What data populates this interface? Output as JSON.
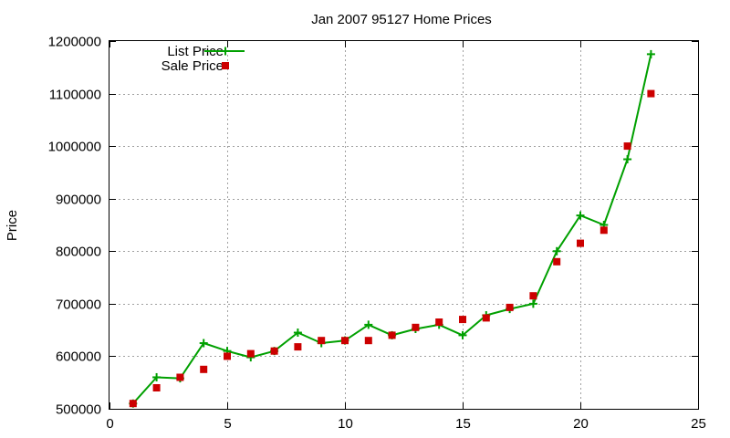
{
  "chart_data": {
    "type": "line",
    "title": "Jan 2007 95127 Home Prices",
    "xlabel": "",
    "ylabel": "Price",
    "xlim": [
      0,
      25
    ],
    "ylim": [
      500000,
      1200000
    ],
    "xticks": [
      0,
      5,
      10,
      15,
      20,
      25
    ],
    "yticks": [
      500000,
      600000,
      700000,
      800000,
      900000,
      1000000,
      1100000,
      1200000
    ],
    "grid": true,
    "legend_position": "top-left",
    "series": [
      {
        "name": "List Price",
        "style": "line-with-plus-markers",
        "color": "#00a000",
        "x": [
          1,
          2,
          3,
          4,
          5,
          6,
          7,
          8,
          9,
          10,
          11,
          12,
          13,
          14,
          15,
          16,
          17,
          18,
          19,
          20,
          21,
          22,
          23
        ],
        "values": [
          510000,
          560000,
          558000,
          625000,
          610000,
          598000,
          610000,
          645000,
          625000,
          630000,
          660000,
          640000,
          652000,
          660000,
          640000,
          678000,
          690000,
          700000,
          800000,
          868000,
          850000,
          975000,
          1175000
        ]
      },
      {
        "name": "Sale Price",
        "style": "square-markers",
        "color": "#cc0000",
        "x": [
          1,
          2,
          3,
          4,
          5,
          6,
          7,
          8,
          9,
          10,
          11,
          12,
          13,
          14,
          15,
          16,
          17,
          18,
          19,
          20,
          21,
          22,
          23
        ],
        "values": [
          510000,
          540000,
          560000,
          575000,
          600000,
          605000,
          610000,
          618000,
          630000,
          630000,
          630000,
          640000,
          655000,
          665000,
          670000,
          673000,
          693000,
          715000,
          780000,
          815000,
          840000,
          1000000,
          1100000
        ]
      }
    ]
  }
}
